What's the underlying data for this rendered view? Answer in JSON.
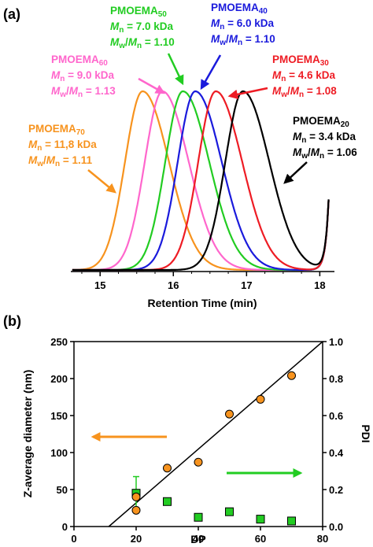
{
  "figure": {
    "panel_a_label": "(a)",
    "panel_b_label": "(b)"
  },
  "chart_data": [
    {
      "type": "line",
      "xlabel": "Retention Time (min)",
      "xlim": [
        14.6,
        18.2
      ],
      "x_ticks": [
        "15",
        "16",
        "17",
        "18"
      ],
      "series": [
        {
          "name": "PMOEMA70",
          "color": "#f7931e",
          "peak_x": 15.58,
          "values_note": "",
          "mn": "M_n = 11,8 kDa",
          "pdi": "M_w/M_n = 1.11"
        },
        {
          "name": "PMOEMA60",
          "color": "#ff66cc",
          "peak_x": 15.85,
          "mn": "M_n = 9.0 kDa",
          "pdi": "M_w/M_n = 1.13"
        },
        {
          "name": "PMOEMA50",
          "color": "#22cc22",
          "peak_x": 16.13,
          "mn": "M_n = 7.0 kDa",
          "pdi": "M_w/M_n = 1.10"
        },
        {
          "name": "PMOEMA40",
          "color": "#1a1adc",
          "peak_x": 16.3,
          "mn": "M_n = 6.0 kDa",
          "pdi": "M_w/M_n = 1.10"
        },
        {
          "name": "PMOEMA30",
          "color": "#ee1c24",
          "peak_x": 16.58,
          "mn": "M_n = 4.6 kDa",
          "pdi": "M_w/M_n = 1.08"
        },
        {
          "name": "PMOEMA20",
          "color": "#000000",
          "peak_x": 16.95,
          "mn": "M_n = 3.4 kDa",
          "pdi": "M_w/M_n = 1.06"
        }
      ]
    },
    {
      "type": "scatter",
      "xlabel": "DP",
      "ylabel": "Z-average diameter (nm)",
      "y2label": "PDI",
      "xlim": [
        0,
        80
      ],
      "ylim": [
        0,
        250
      ],
      "y2lim": [
        0,
        1.0
      ],
      "x_ticks": [
        "0",
        "20",
        "40",
        "60",
        "80"
      ],
      "y_ticks": [
        "0",
        "50",
        "100",
        "150",
        "200",
        "250"
      ],
      "y2_ticks": [
        "0.0",
        "0.2",
        "0.4",
        "0.6",
        "0.8",
        "1.0"
      ],
      "series": [
        {
          "name": "Z-average diameter",
          "color": "#f7931e",
          "marker": "circle",
          "x": [
            20,
            20,
            30,
            40,
            50,
            60,
            70
          ],
          "y": [
            40,
            22,
            79,
            87,
            152,
            172,
            204
          ]
        },
        {
          "name": "PDI",
          "color": "#22cc22",
          "marker": "square",
          "x": [
            20,
            30,
            40,
            50,
            60,
            70
          ],
          "y": [
            0.18,
            0.135,
            0.05,
            0.08,
            0.04,
            0.03
          ],
          "errors": [
            0.09,
            0,
            0,
            0,
            0,
            0
          ]
        }
      ],
      "fit_line": {
        "x": [
          11.2,
          80
        ],
        "y": [
          0,
          250
        ]
      }
    }
  ]
}
